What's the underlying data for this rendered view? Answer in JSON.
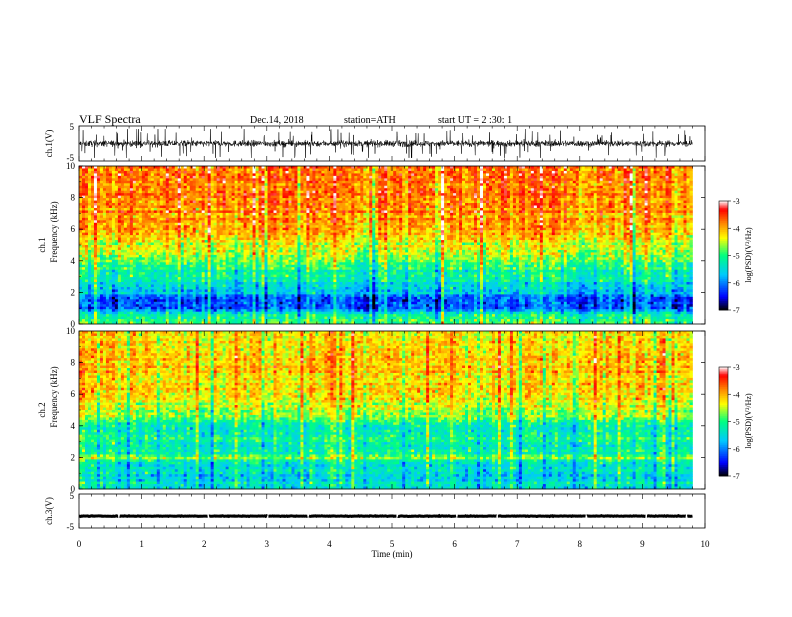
{
  "header": {
    "title": "VLF  Spectra",
    "date": "Dec.14, 2018",
    "station": "station=ATH",
    "start_ut": "start  UT  =   2  :30: 1"
  },
  "colors": {
    "colormap": [
      "#000000",
      "#0000ff",
      "#00c8ff",
      "#00ff80",
      "#ffff00",
      "#ff8000",
      "#ff0000",
      "#ffffff"
    ],
    "trace": "#000000"
  },
  "chart_data": [
    {
      "type": "line",
      "panel": "ch1-waveform",
      "ylabel": "ch.1(V)",
      "ylim": [
        -5,
        5
      ],
      "yticks": [
        "5",
        "-5"
      ],
      "xlim": [
        0,
        10
      ],
      "duration_min": 9.8,
      "amplitude_typical": 1.5,
      "offset": 0
    },
    {
      "type": "heatmap",
      "panel": "ch1-spectrogram",
      "ylabel": "ch.1",
      "ylabel2": "Frequency (kHz)",
      "ylim": [
        0,
        10
      ],
      "yticks": [
        "0",
        "2",
        "4",
        "6",
        "8",
        "10"
      ],
      "xlim": [
        0,
        10
      ],
      "duration_min": 9.8,
      "colorbar": {
        "label": "log(PSD)(V²/Hz)",
        "range": [
          -7,
          -3
        ],
        "ticks": [
          "-3",
          "-4",
          "-5",
          "-6",
          "-7"
        ]
      },
      "psd_profile_khz": [
        [
          0,
          -4.8
        ],
        [
          0.6,
          -5.2
        ],
        [
          1.0,
          -6.2
        ],
        [
          1.6,
          -6.3
        ],
        [
          2.0,
          -5.6
        ],
        [
          3.0,
          -5.2
        ],
        [
          4.0,
          -4.8
        ],
        [
          5.0,
          -4.3
        ],
        [
          6.0,
          -4.0
        ],
        [
          8.0,
          -3.8
        ],
        [
          10.0,
          -3.8
        ]
      ]
    },
    {
      "type": "heatmap",
      "panel": "ch2-spectrogram",
      "ylabel": "ch.2",
      "ylabel2": "Frequency (kHz)",
      "ylim": [
        0,
        10
      ],
      "yticks": [
        "0",
        "2",
        "4",
        "6",
        "8",
        "10"
      ],
      "xlim": [
        0,
        10
      ],
      "duration_min": 9.8,
      "colorbar": {
        "label": "log(PSD)(V²/Hz)",
        "range": [
          -7,
          -3
        ],
        "ticks": [
          "-3",
          "-4",
          "-5",
          "-6",
          "-7"
        ]
      },
      "psd_profile_khz": [
        [
          0,
          -5.4
        ],
        [
          1.0,
          -5.5
        ],
        [
          1.8,
          -5.3
        ],
        [
          2.0,
          -4.6
        ],
        [
          2.2,
          -5.2
        ],
        [
          3.0,
          -5.3
        ],
        [
          4.0,
          -5.2
        ],
        [
          5.0,
          -4.5
        ],
        [
          6.0,
          -4.3
        ],
        [
          8.0,
          -4.1
        ],
        [
          10.0,
          -4.2
        ]
      ]
    },
    {
      "type": "line",
      "panel": "ch3-waveform",
      "ylabel": "ch.3(V)",
      "ylim": [
        -5,
        5
      ],
      "yticks": [
        "5",
        "-5"
      ],
      "xlim": [
        0,
        10
      ],
      "duration_min": 9.8,
      "amplitude_typical": 0.15,
      "offset": -1.5
    }
  ],
  "xaxis": {
    "label": "Time  (min)",
    "ticks": [
      "0",
      "1",
      "2",
      "3",
      "4",
      "5",
      "6",
      "7",
      "8",
      "9",
      "10"
    ]
  }
}
